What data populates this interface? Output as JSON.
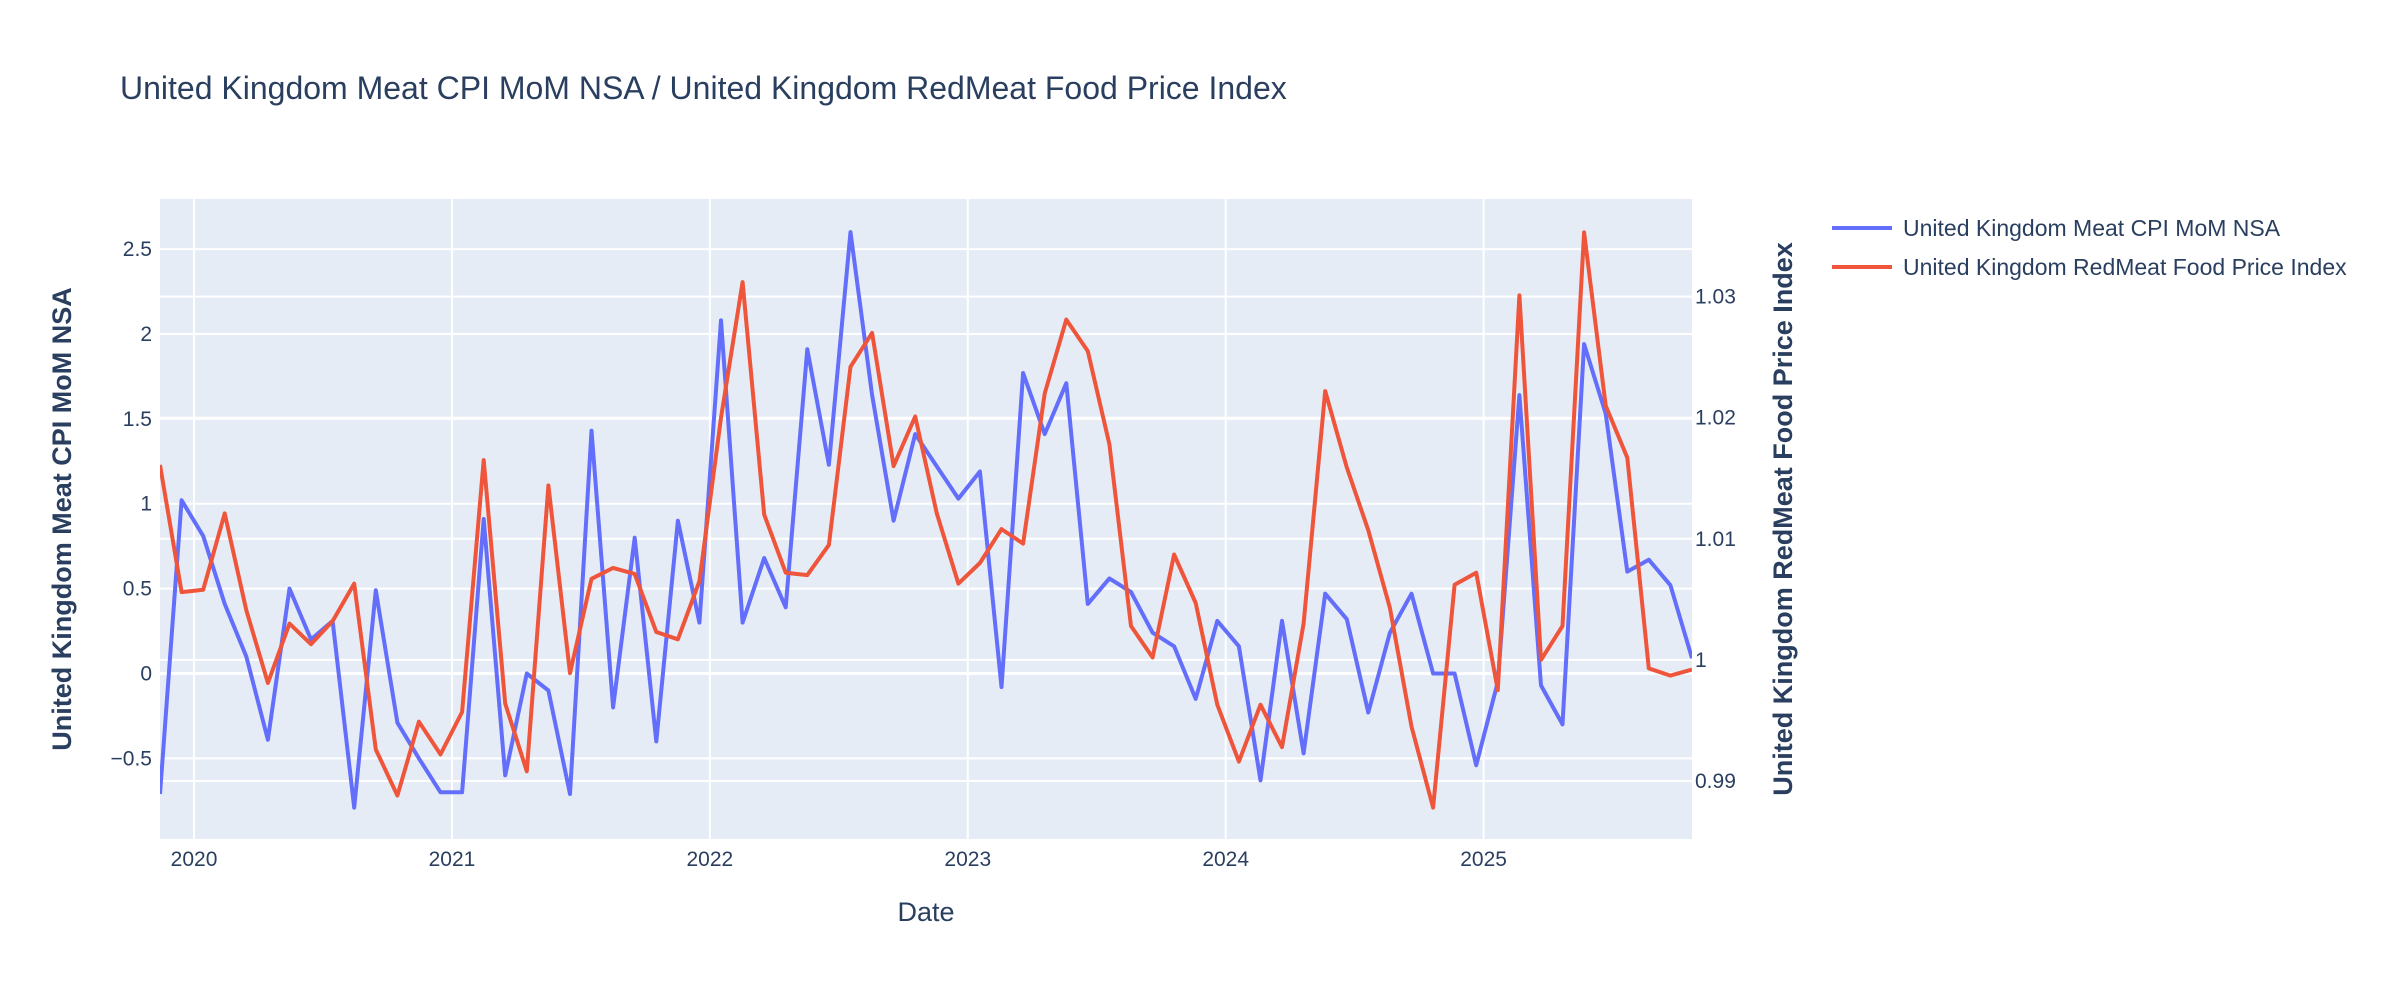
{
  "chart_data": {
    "type": "line",
    "title": "United Kingdom Meat CPI MoM NSA / United Kingdom RedMeat Food Price Index",
    "xlabel": "Date",
    "ylabel": "United Kingdom Meat CPI MoM NSA",
    "y2label": "United Kingdom RedMeat Food Price Index",
    "x": [
      "2019-11",
      "2019-12",
      "2020-01",
      "2020-02",
      "2020-03",
      "2020-04",
      "2020-05",
      "2020-06",
      "2020-07",
      "2020-08",
      "2020-09",
      "2020-10",
      "2020-11",
      "2020-12",
      "2021-01",
      "2021-02",
      "2021-03",
      "2021-04",
      "2021-05",
      "2021-06",
      "2021-07",
      "2021-08",
      "2021-09",
      "2021-10",
      "2021-11",
      "2021-12",
      "2022-01",
      "2022-02",
      "2022-03",
      "2022-04",
      "2022-05",
      "2022-06",
      "2022-07",
      "2022-08",
      "2022-09",
      "2022-10",
      "2022-11",
      "2022-12",
      "2023-01",
      "2023-02",
      "2023-03",
      "2023-04",
      "2023-05",
      "2023-06",
      "2023-07",
      "2023-08",
      "2023-09",
      "2023-10",
      "2023-11",
      "2023-12",
      "2024-01",
      "2024-02",
      "2024-03",
      "2024-04",
      "2024-05",
      "2024-06",
      "2024-07",
      "2024-08",
      "2024-09",
      "2024-10",
      "2024-11",
      "2024-12",
      "2025-01",
      "2025-02",
      "2025-03",
      "2025-04",
      "2025-05",
      "2025-06",
      "2025-07",
      "2025-08",
      "2025-09",
      "2025-10"
    ],
    "xlim": [
      2019.868,
      2025.808
    ],
    "x_ticks": [
      {
        "value": 2020,
        "label": "2020"
      },
      {
        "value": 2021,
        "label": "2021"
      },
      {
        "value": 2022,
        "label": "2022"
      },
      {
        "value": 2023,
        "label": "2023"
      },
      {
        "value": 2024,
        "label": "2024"
      },
      {
        "value": 2025,
        "label": "2025"
      }
    ],
    "ylim": [
      -0.975,
      2.795
    ],
    "y_ticks": [
      {
        "value": -0.5,
        "label": "−0.5"
      },
      {
        "value": 0,
        "label": "0"
      },
      {
        "value": 0.5,
        "label": "0.5"
      },
      {
        "value": 1,
        "label": "1"
      },
      {
        "value": 1.5,
        "label": "1.5"
      },
      {
        "value": 2,
        "label": "2"
      },
      {
        "value": 2.5,
        "label": "2.5"
      }
    ],
    "y2lim": [
      0.98521,
      1.03806
    ],
    "y2_ticks": [
      {
        "value": 0.99,
        "label": "0.99"
      },
      {
        "value": 1.0,
        "label": "1"
      },
      {
        "value": 1.01,
        "label": "1.01"
      },
      {
        "value": 1.02,
        "label": "1.02"
      },
      {
        "value": 1.03,
        "label": "1.03"
      }
    ],
    "grid": true,
    "legend_position": "top-right-outside",
    "series": [
      {
        "name": "United Kingdom Meat CPI MoM NSA",
        "axis": "y",
        "color": "#636efa",
        "values": [
          -0.71,
          1.02,
          0.81,
          0.41,
          0.1,
          -0.39,
          0.5,
          0.2,
          0.31,
          -0.79,
          0.49,
          -0.29,
          -0.5,
          -0.7,
          -0.7,
          0.91,
          -0.6,
          0.0,
          -0.1,
          -0.71,
          1.43,
          -0.2,
          0.8,
          -0.4,
          0.9,
          0.3,
          2.08,
          0.3,
          0.68,
          0.39,
          1.91,
          1.23,
          2.6,
          1.64,
          0.9,
          1.41,
          1.22,
          1.03,
          1.19,
          -0.08,
          1.77,
          1.41,
          1.71,
          0.41,
          0.56,
          0.48,
          0.24,
          0.16,
          -0.15,
          0.31,
          0.16,
          -0.63,
          0.31,
          -0.47,
          0.47,
          0.32,
          -0.23,
          0.24,
          0.47,
          0.0,
          0.0,
          -0.54,
          -0.05,
          1.64,
          -0.07,
          -0.3,
          1.94,
          1.53,
          0.6,
          0.67,
          0.52,
          0.09
        ]
      },
      {
        "name": "United Kingdom RedMeat Food Price Index",
        "axis": "y2",
        "color": "#EF553B",
        "values": [
          1.0161,
          1.0056,
          1.0058,
          1.0121,
          1.0041,
          0.9981,
          1.003,
          1.0013,
          1.0032,
          1.0063,
          0.9926,
          0.9888,
          0.9949,
          0.9922,
          0.9957,
          1.0165,
          0.9964,
          0.9908,
          1.0144,
          0.9989,
          1.0067,
          1.0076,
          1.0071,
          1.0023,
          1.0017,
          1.0065,
          1.02,
          1.0312,
          1.012,
          1.0072,
          1.007,
          1.0095,
          1.0242,
          1.027,
          1.016,
          1.0201,
          1.0121,
          1.0063,
          1.008,
          1.0108,
          1.0096,
          1.022,
          1.0281,
          1.0255,
          1.0178,
          1.0028,
          1.0002,
          1.0087,
          1.0047,
          0.9963,
          0.9916,
          0.9963,
          0.9928,
          1.003,
          1.0222,
          1.0159,
          1.0107,
          1.0043,
          0.9945,
          0.9878,
          1.0062,
          1.0072,
          0.9975,
          1.0301,
          1.0,
          1.0028,
          1.0353,
          1.021,
          1.0167,
          0.9993,
          0.9987,
          0.9992
        ]
      }
    ]
  },
  "colors": {
    "plot_background": "#e5ecf6",
    "grid": "#ffffff",
    "text": "#2a3f5f"
  }
}
